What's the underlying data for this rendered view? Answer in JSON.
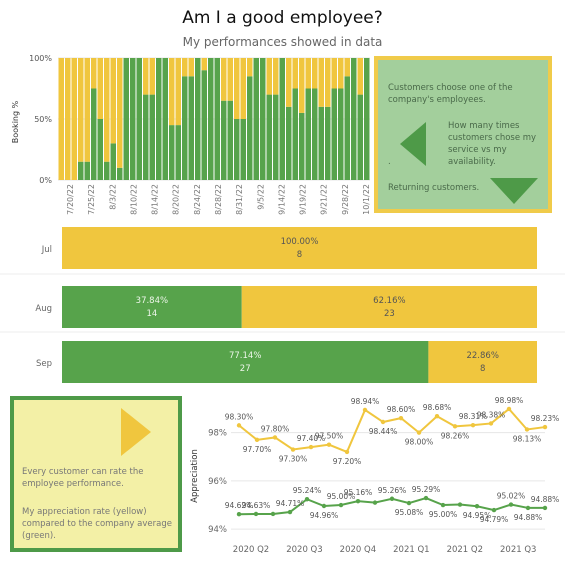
{
  "header": {
    "title": "Am I a good employee?",
    "subtitle": "My performances showed in data"
  },
  "colors": {
    "green": "#57a34b",
    "yellow": "#f0c63e",
    "card_green_bg": "#a3cf9c",
    "card_yellow_bg": "#f3f0a6"
  },
  "info_card_top": {
    "text1": "Customers choose one of the company's employees.",
    "text2": "How many times customers chose my service vs my availability.",
    "dot": ".",
    "text3": "Returning customers.",
    "icons": [
      "triangle-left-icon",
      "triangle-down-icon"
    ]
  },
  "info_card_bottom": {
    "text1": "Every customer can rate the employee performance.",
    "text2": "My appreciation rate (yellow) compared to the company average (green).",
    "icons": [
      "triangle-right-icon"
    ]
  },
  "chart_data": [
    {
      "type": "bar",
      "stacked": true,
      "ylabel": "Booking %",
      "yticks": [
        "0%",
        "50%",
        "100%"
      ],
      "ylim": [
        0,
        100
      ],
      "xtick_labels": [
        "7/20/22",
        "7/25/22",
        "8/3/22",
        "8/10/22",
        "8/14/22",
        "8/20/22",
        "8/24/22",
        "8/28/22",
        "8/31/22",
        "9/5/22",
        "9/14/22",
        "9/19/22",
        "9/21/22",
        "9/28/22",
        "10/1/22"
      ],
      "series": [
        {
          "values": [
            0,
            0,
            0,
            15,
            15,
            75,
            50,
            15,
            30,
            10,
            100,
            100,
            100,
            70,
            70,
            100,
            100,
            45,
            45,
            85,
            85,
            100,
            90,
            100,
            100,
            65,
            65,
            50,
            50,
            85,
            100,
            100,
            70,
            70,
            100,
            60,
            75,
            55,
            75,
            75,
            60,
            60,
            75,
            75,
            85,
            100,
            70,
            100
          ]
        },
        {
          "values": [
            100,
            100,
            100,
            85,
            85,
            25,
            50,
            85,
            70,
            90,
            0,
            0,
            0,
            30,
            30,
            0,
            0,
            55,
            55,
            15,
            15,
            0,
            10,
            0,
            0,
            35,
            35,
            50,
            50,
            15,
            0,
            0,
            30,
            30,
            0,
            40,
            25,
            45,
            25,
            25,
            40,
            40,
            25,
            25,
            15,
            0,
            30,
            0
          ]
        }
      ],
      "grid": true
    },
    {
      "type": "bar",
      "orientation": "horizontal",
      "stacked": true,
      "categories": [
        "Jul",
        "Aug",
        "Sep"
      ],
      "series": [
        {
          "values": [
            0,
            37.84,
            77.14
          ],
          "counts": [
            "",
            "14",
            "27"
          ],
          "labels": [
            "",
            "37.84%",
            "77.14%"
          ]
        },
        {
          "values": [
            100,
            62.16,
            22.86
          ],
          "counts": [
            "8",
            "23",
            "8"
          ],
          "labels": [
            "100.00%",
            "62.16%",
            "22.86%"
          ]
        }
      ]
    },
    {
      "type": "line",
      "ylabel": "Appreciation",
      "yticks": [
        "94%",
        "96%",
        "98%"
      ],
      "ylim": [
        93.8,
        99.6
      ],
      "xtick_labels": [
        "2020 Q2",
        "2020 Q3",
        "2020 Q4",
        "2021 Q1",
        "2021 Q2",
        "2021 Q3"
      ],
      "grid": true,
      "series": [
        {
          "values": [
            98.3,
            97.7,
            97.8,
            97.3,
            97.4,
            97.5,
            97.2,
            98.94,
            98.44,
            98.6,
            98.0,
            98.68,
            98.26,
            98.31,
            98.38,
            98.98,
            98.13,
            98.23
          ],
          "labels": [
            "98.30%",
            "97.70%",
            "97.80%",
            "97.30%",
            "97.40%",
            "97.50%",
            "97.20%",
            "98.94%",
            "98.44%",
            "98.60%",
            "98.00%",
            "98.68%",
            "98.26%",
            "98.31%",
            "98.38%",
            "98.98%",
            "98.13%",
            "98.23%"
          ]
        },
        {
          "values": [
            94.62,
            94.63,
            94.63,
            94.71,
            95.24,
            94.96,
            95.0,
            95.16,
            95.1,
            95.26,
            95.08,
            95.29,
            95.0,
            95.02,
            94.95,
            94.79,
            95.02,
            94.88,
            94.88
          ],
          "labels": [
            "94.62%",
            "94.63%",
            "",
            "94.71%",
            "95.24%",
            "94.96%",
            "95.00%",
            "95.16%",
            "",
            "95.26%",
            "95.08%",
            "95.29%",
            "95.00%",
            "",
            "94.95%",
            "94.79%",
            "95.02%",
            "94.88%",
            "94.88%"
          ]
        }
      ]
    }
  ]
}
